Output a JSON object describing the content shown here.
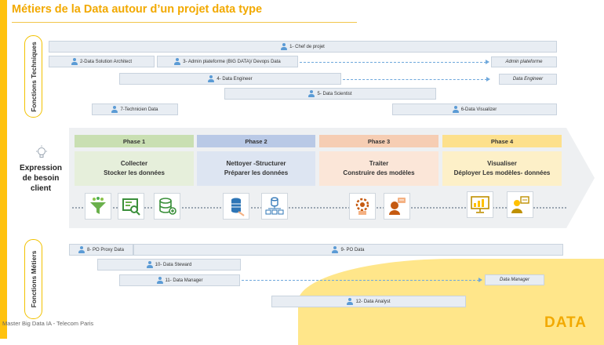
{
  "title": "Métiers de la Data autour d’un projet data type",
  "side_labels": {
    "technical": "Fonctions Techniques",
    "business": "Fonctions Métiers"
  },
  "expression": [
    "Expression",
    "de besoin",
    "client"
  ],
  "technical_roles": {
    "chef_projet": "1- Chef de projet",
    "solution_architect": "2-Data Solution Architect",
    "admin_plateforme": "3- Admin plateforme (BIG DATA)/ Devops Data",
    "admin_plateforme_target": "Admin plateforme",
    "data_engineer": "4- Data Engineer",
    "data_engineer_target": "Data Engineer",
    "data_scientist": "5- Data  Scientist",
    "data_visualizer": "6-Data Visualizer",
    "technicien_data": "7-Technicien Data"
  },
  "phases": [
    {
      "name": "Phase 1",
      "line1": "Collecter",
      "line2": "Stocker les données",
      "header_color": "#c9dfb2",
      "body_color": "#e6efdb"
    },
    {
      "name": "Phase 2",
      "line1": "Nettoyer -Structurer",
      "line2": "Préparer les données",
      "header_color": "#b9c9e6",
      "body_color": "#dde5f2"
    },
    {
      "name": "Phase 3",
      "line1": "Traiter",
      "line2": "Construire des modèles",
      "header_color": "#f6cdb3",
      "body_color": "#fbe6d8"
    },
    {
      "name": "Phase 4",
      "line1": "Visualiser",
      "line2": "Déployer Les modèles- données",
      "header_color": "#fde08c",
      "body_color": "#fdf0c8"
    }
  ],
  "phase_icons": [
    [
      "funnel-icon",
      "inspect-icon",
      "database-add-icon"
    ],
    [
      "database-clean-icon",
      "structure-icon"
    ],
    [
      "model-gear-icon",
      "model-person-icon"
    ],
    [
      "dashboard-icon",
      "presenter-icon"
    ]
  ],
  "business_roles": {
    "po_proxy": "8- PO Proxy Data",
    "po_data": "9- PO Data",
    "data_steward": "10- Data Steward",
    "data_manager": "11- Data Manager",
    "data_manager_target": "Data Manager",
    "data_analyst": "12- Data Analyst"
  },
  "footer": "Master Big Data IA - Telecom Paris",
  "logo": "DATA",
  "colors": {
    "accent": "#FFC20E",
    "title": "#F2A900",
    "role_fill": "#e8edf3",
    "person_icon": "#5b9bd5"
  }
}
